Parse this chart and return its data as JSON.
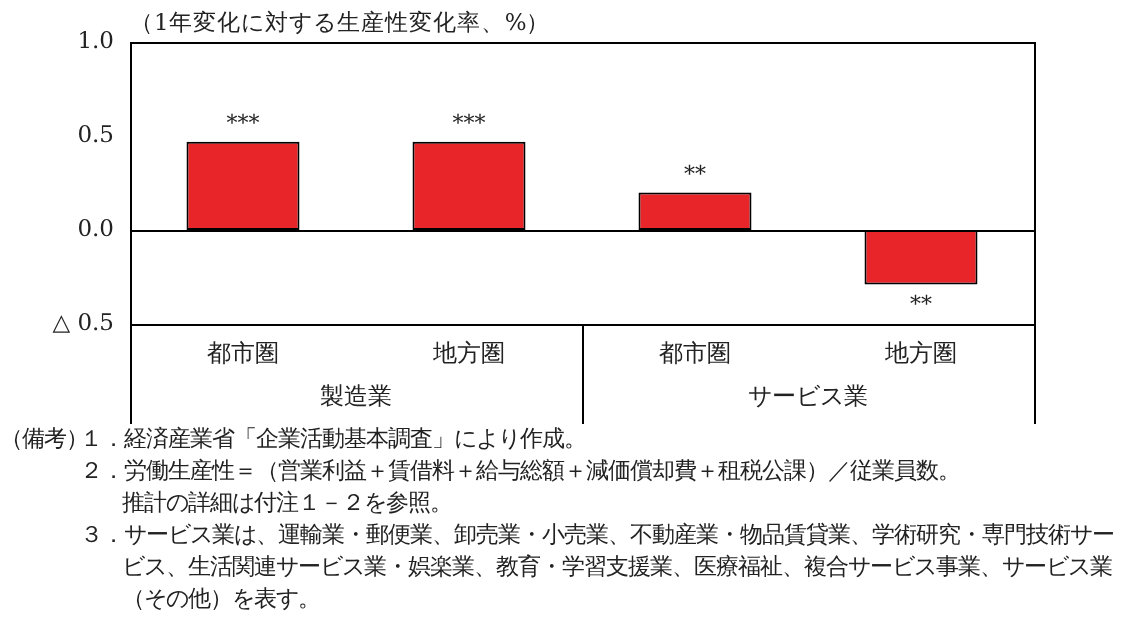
{
  "chart_data": {
    "type": "bar",
    "ylabel": "（1年変化に対する生産性変化率、%）",
    "categories": [
      "都市圏",
      "地方圏",
      "都市圏",
      "地方圏"
    ],
    "values": [
      0.47,
      0.47,
      0.2,
      -0.29
    ],
    "value_labels": [
      "***",
      "***",
      "**",
      "**"
    ],
    "color": "#e8262a",
    "ylim": [
      -0.5,
      1.0
    ],
    "yticks": [
      {
        "value": -0.5,
        "label": "△ 0.5"
      },
      {
        "value": 0,
        "label": "0.0"
      },
      {
        "value": 0.5,
        "label": "0.5"
      },
      {
        "value": 1.0,
        "label": "1.0"
      }
    ],
    "annotations": [
      "製造業",
      "サービス業",
      "（備考）",
      "１．経済産業省「企業活動基本調査」により作成。",
      "２．労働生産性＝（営業利益＋賃借料＋給与総額＋減価償却費＋租税公課）／従業員数。",
      "推計の詳細は付注１－２を参照。",
      "３．サービス業は、運輸業・郵便業、卸売業・小売業、不動産業・物品賃貸業、学術研究・専門技術サービス、生活関連サービス業・娯楽業、教育・学習支援業、医療福祉、複合サービス事業、サービス業（その他）を表す。"
    ]
  }
}
